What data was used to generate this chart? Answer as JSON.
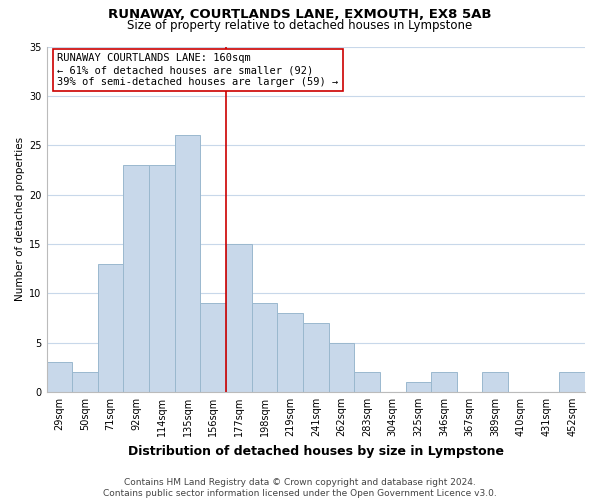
{
  "title": "RUNAWAY, COURTLANDS LANE, EXMOUTH, EX8 5AB",
  "subtitle": "Size of property relative to detached houses in Lympstone",
  "xlabel": "Distribution of detached houses by size in Lympstone",
  "ylabel": "Number of detached properties",
  "bar_labels": [
    "29sqm",
    "50sqm",
    "71sqm",
    "92sqm",
    "114sqm",
    "135sqm",
    "156sqm",
    "177sqm",
    "198sqm",
    "219sqm",
    "241sqm",
    "262sqm",
    "283sqm",
    "304sqm",
    "325sqm",
    "346sqm",
    "367sqm",
    "389sqm",
    "410sqm",
    "431sqm",
    "452sqm"
  ],
  "bar_values": [
    3,
    2,
    13,
    23,
    23,
    26,
    9,
    15,
    9,
    8,
    7,
    5,
    2,
    0,
    1,
    2,
    0,
    2,
    0,
    0,
    2
  ],
  "bar_color": "#c8d8ea",
  "bar_edge_color": "#9ab8ce",
  "vline_index": 6,
  "vline_color": "#cc0000",
  "annotation_title": "RUNAWAY COURTLANDS LANE: 160sqm",
  "annotation_line1": "← 61% of detached houses are smaller (92)",
  "annotation_line2": "39% of semi-detached houses are larger (59) →",
  "annotation_box_facecolor": "#ffffff",
  "annotation_box_edgecolor": "#cc0000",
  "ylim": [
    0,
    35
  ],
  "yticks": [
    0,
    5,
    10,
    15,
    20,
    25,
    30,
    35
  ],
  "footer1": "Contains HM Land Registry data © Crown copyright and database right 2024.",
  "footer2": "Contains public sector information licensed under the Open Government Licence v3.0.",
  "background_color": "#ffffff",
  "grid_color": "#c8d8ea",
  "title_fontsize": 9.5,
  "subtitle_fontsize": 8.5,
  "xlabel_fontsize": 9,
  "ylabel_fontsize": 7.5,
  "tick_fontsize": 7,
  "footer_fontsize": 6.5,
  "annot_fontsize": 7.5
}
